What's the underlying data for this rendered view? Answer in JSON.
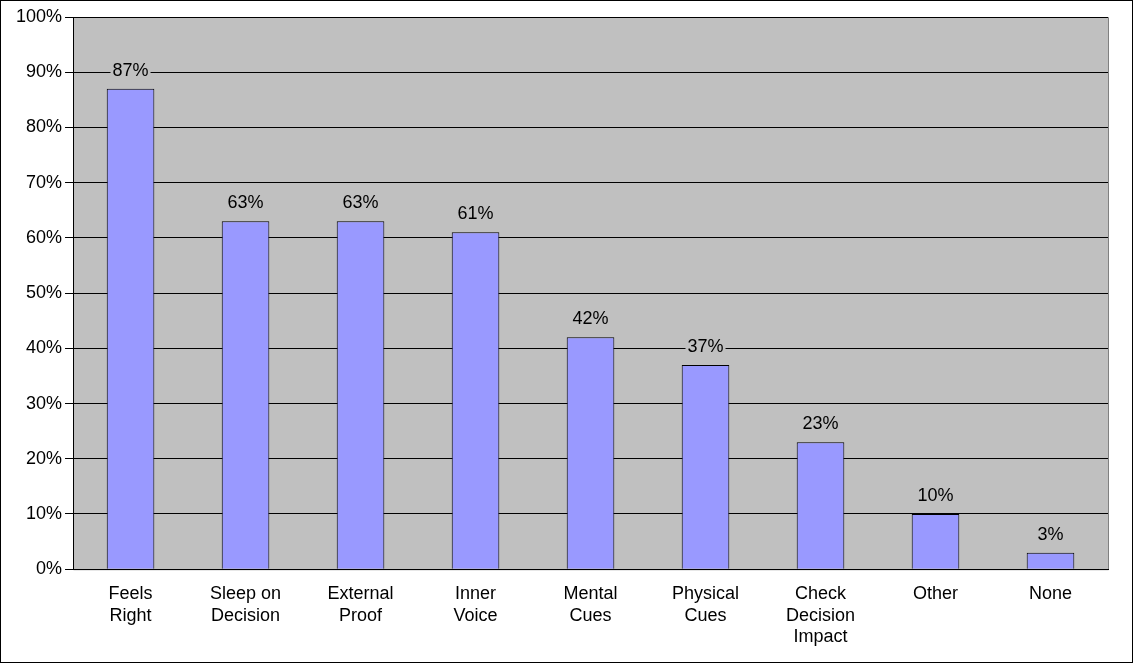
{
  "chart_data": {
    "type": "bar",
    "categories": [
      "Feels Right",
      "Sleep on Decision",
      "External Proof",
      "Inner Voice",
      "Mental Cues",
      "Physical Cues",
      "Check Decision Impact",
      "Other",
      "None"
    ],
    "values": [
      87,
      63,
      63,
      61,
      42,
      37,
      23,
      10,
      3
    ],
    "value_labels": [
      "87%",
      "63%",
      "63%",
      "61%",
      "42%",
      "37%",
      "23%",
      "10%",
      "3%"
    ],
    "color": "#9999ff",
    "ylim": [
      0,
      100
    ],
    "yticks": [
      {
        "value": 0,
        "label": "0%"
      },
      {
        "value": 10,
        "label": "10%"
      },
      {
        "value": 20,
        "label": "20%"
      },
      {
        "value": 30,
        "label": "30%"
      },
      {
        "value": 40,
        "label": "40%"
      },
      {
        "value": 50,
        "label": "50%"
      },
      {
        "value": 60,
        "label": "60%"
      },
      {
        "value": 70,
        "label": "70%"
      },
      {
        "value": 80,
        "label": "80%"
      },
      {
        "value": 90,
        "label": "90%"
      },
      {
        "value": 100,
        "label": "100%"
      }
    ],
    "grid": "y",
    "legend": false
  }
}
